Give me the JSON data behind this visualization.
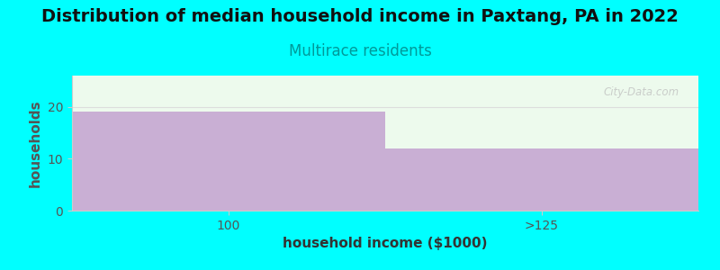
{
  "title": "Distribution of median household income in Paxtang, PA in 2022",
  "subtitle": "Multirace residents",
  "categories": [
    "100",
    ">125"
  ],
  "values": [
    19,
    12
  ],
  "bar_color": "#c9afd4",
  "background_color": "#00ffff",
  "plot_bg_color": "#edfaed",
  "xlabel": "household income ($1000)",
  "ylabel": "households",
  "ylim": [
    0,
    26
  ],
  "yticks": [
    0,
    10,
    20
  ],
  "title_fontsize": 14,
  "subtitle_fontsize": 12,
  "subtitle_color": "#009999",
  "axis_label_fontsize": 11,
  "tick_fontsize": 10,
  "watermark_text": "City-Data.com",
  "watermark_color": "#bbbbbb",
  "title_color": "#111111"
}
